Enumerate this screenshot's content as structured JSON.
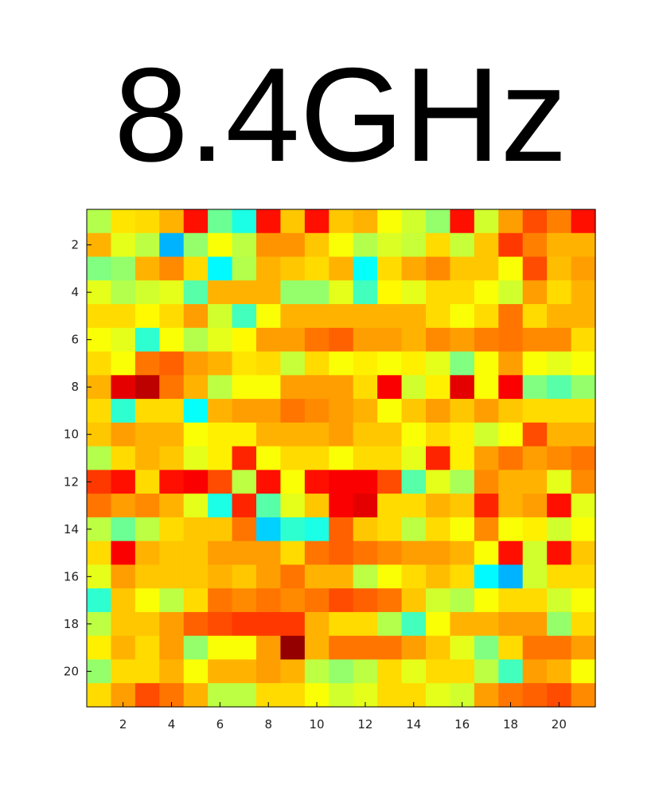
{
  "chart_data": {
    "type": "heatmap",
    "title": "8.4GHz",
    "xlabel": "",
    "ylabel": "",
    "xlim": [
      0.5,
      21.5
    ],
    "ylim": [
      0.5,
      21.5
    ],
    "y_reversed": true,
    "grid": false,
    "colormap": "jet",
    "x_ticks": [
      2,
      4,
      6,
      8,
      10,
      12,
      14,
      16,
      18,
      20
    ],
    "y_ticks": [
      2,
      4,
      6,
      8,
      10,
      12,
      14,
      16,
      18,
      20
    ],
    "x_tick_labels": [
      "2",
      "4",
      "6",
      "8",
      "10",
      "12",
      "14",
      "16",
      "18",
      "20"
    ],
    "y_tick_labels": [
      "2",
      "4",
      "6",
      "8",
      "10",
      "12",
      "14",
      "16",
      "18",
      "20"
    ],
    "z_normalized": [
      [
        0.55,
        0.65,
        0.66,
        0.7,
        0.86,
        0.48,
        0.4,
        0.86,
        0.68,
        0.86,
        0.68,
        0.7,
        0.62,
        0.58,
        0.52,
        0.86,
        0.58,
        0.72,
        0.8,
        0.75,
        0.86
      ],
      [
        0.7,
        0.6,
        0.56,
        0.3,
        0.52,
        0.62,
        0.56,
        0.73,
        0.73,
        0.68,
        0.62,
        0.55,
        0.59,
        0.57,
        0.66,
        0.57,
        0.68,
        0.82,
        0.75,
        0.7,
        0.7
      ],
      [
        0.5,
        0.52,
        0.7,
        0.74,
        0.66,
        0.37,
        0.55,
        0.7,
        0.68,
        0.66,
        0.7,
        0.38,
        0.66,
        0.71,
        0.74,
        0.68,
        0.68,
        0.62,
        0.8,
        0.69,
        0.72
      ],
      [
        0.6,
        0.55,
        0.58,
        0.6,
        0.46,
        0.7,
        0.7,
        0.7,
        0.52,
        0.52,
        0.6,
        0.44,
        0.63,
        0.6,
        0.66,
        0.66,
        0.62,
        0.58,
        0.72,
        0.66,
        0.7
      ],
      [
        0.66,
        0.66,
        0.63,
        0.66,
        0.72,
        0.58,
        0.44,
        0.62,
        0.7,
        0.7,
        0.7,
        0.7,
        0.7,
        0.7,
        0.66,
        0.62,
        0.66,
        0.76,
        0.66,
        0.7,
        0.7
      ],
      [
        0.62,
        0.6,
        0.42,
        0.62,
        0.55,
        0.6,
        0.63,
        0.72,
        0.72,
        0.76,
        0.78,
        0.72,
        0.72,
        0.7,
        0.74,
        0.72,
        0.75,
        0.76,
        0.74,
        0.74,
        0.66
      ],
      [
        0.66,
        0.62,
        0.76,
        0.78,
        0.72,
        0.7,
        0.65,
        0.66,
        0.57,
        0.66,
        0.62,
        0.64,
        0.62,
        0.64,
        0.6,
        0.5,
        0.62,
        0.72,
        0.62,
        0.6,
        0.62
      ],
      [
        0.7,
        0.9,
        0.94,
        0.76,
        0.7,
        0.56,
        0.62,
        0.62,
        0.72,
        0.72,
        0.72,
        0.66,
        0.88,
        0.58,
        0.64,
        0.9,
        0.62,
        0.88,
        0.5,
        0.46,
        0.52
      ],
      [
        0.66,
        0.42,
        0.66,
        0.66,
        0.38,
        0.7,
        0.72,
        0.72,
        0.76,
        0.74,
        0.72,
        0.7,
        0.62,
        0.68,
        0.72,
        0.68,
        0.72,
        0.68,
        0.66,
        0.66,
        0.66
      ],
      [
        0.68,
        0.72,
        0.7,
        0.7,
        0.62,
        0.64,
        0.64,
        0.7,
        0.7,
        0.7,
        0.72,
        0.68,
        0.68,
        0.62,
        0.66,
        0.64,
        0.58,
        0.62,
        0.8,
        0.7,
        0.7
      ],
      [
        0.55,
        0.66,
        0.7,
        0.68,
        0.6,
        0.64,
        0.84,
        0.62,
        0.66,
        0.66,
        0.62,
        0.66,
        0.66,
        0.6,
        0.84,
        0.64,
        0.72,
        0.76,
        0.72,
        0.74,
        0.76
      ],
      [
        0.82,
        0.86,
        0.66,
        0.86,
        0.88,
        0.8,
        0.56,
        0.86,
        0.62,
        0.86,
        0.88,
        0.88,
        0.8,
        0.46,
        0.6,
        0.54,
        0.74,
        0.7,
        0.7,
        0.6,
        0.74
      ],
      [
        0.76,
        0.72,
        0.74,
        0.7,
        0.6,
        0.4,
        0.84,
        0.46,
        0.6,
        0.68,
        0.88,
        0.9,
        0.66,
        0.66,
        0.7,
        0.68,
        0.84,
        0.7,
        0.72,
        0.86,
        0.6
      ],
      [
        0.56,
        0.48,
        0.56,
        0.66,
        0.68,
        0.68,
        0.76,
        0.33,
        0.42,
        0.4,
        0.78,
        0.68,
        0.66,
        0.56,
        0.66,
        0.62,
        0.74,
        0.62,
        0.64,
        0.58,
        0.62
      ],
      [
        0.66,
        0.88,
        0.7,
        0.68,
        0.68,
        0.72,
        0.72,
        0.72,
        0.66,
        0.76,
        0.78,
        0.76,
        0.74,
        0.72,
        0.72,
        0.7,
        0.62,
        0.86,
        0.58,
        0.86,
        0.68
      ],
      [
        0.6,
        0.72,
        0.68,
        0.68,
        0.68,
        0.7,
        0.68,
        0.72,
        0.76,
        0.7,
        0.7,
        0.56,
        0.62,
        0.66,
        0.69,
        0.66,
        0.37,
        0.3,
        0.58,
        0.66,
        0.66
      ],
      [
        0.42,
        0.68,
        0.62,
        0.56,
        0.66,
        0.76,
        0.74,
        0.76,
        0.74,
        0.76,
        0.8,
        0.78,
        0.76,
        0.68,
        0.58,
        0.55,
        0.62,
        0.66,
        0.66,
        0.58,
        0.62
      ],
      [
        0.56,
        0.68,
        0.68,
        0.72,
        0.78,
        0.8,
        0.82,
        0.82,
        0.82,
        0.7,
        0.66,
        0.66,
        0.55,
        0.44,
        0.62,
        0.7,
        0.7,
        0.72,
        0.72,
        0.52,
        0.66
      ],
      [
        0.64,
        0.7,
        0.66,
        0.72,
        0.52,
        0.62,
        0.62,
        0.72,
        0.98,
        0.7,
        0.76,
        0.76,
        0.76,
        0.72,
        0.68,
        0.6,
        0.5,
        0.66,
        0.76,
        0.76,
        0.72
      ],
      [
        0.52,
        0.66,
        0.66,
        0.7,
        0.62,
        0.7,
        0.7,
        0.72,
        0.7,
        0.56,
        0.52,
        0.56,
        0.66,
        0.6,
        0.66,
        0.66,
        0.56,
        0.44,
        0.72,
        0.7,
        0.62
      ],
      [
        0.66,
        0.72,
        0.8,
        0.76,
        0.7,
        0.56,
        0.56,
        0.66,
        0.66,
        0.62,
        0.58,
        0.6,
        0.66,
        0.66,
        0.6,
        0.58,
        0.72,
        0.76,
        0.78,
        0.8,
        0.74
      ]
    ]
  }
}
